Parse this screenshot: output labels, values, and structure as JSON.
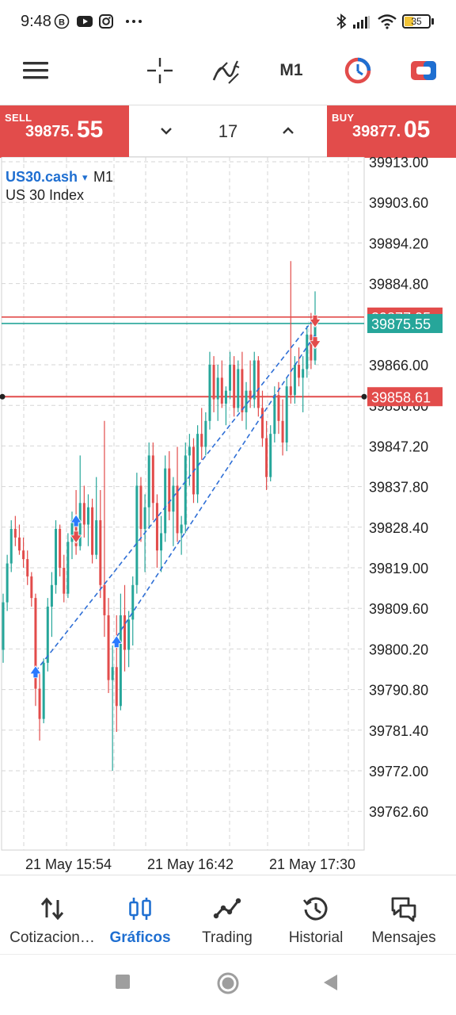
{
  "status_bar": {
    "time": "9:48",
    "battery": "35",
    "icons": [
      "b-circle-icon",
      "youtube-icon",
      "instagram-icon",
      "more-dots-icon",
      "bluetooth-icon",
      "signal-icon",
      "wifi-icon",
      "battery-icon"
    ]
  },
  "toolbar": {
    "timeframe": "M1",
    "icons": [
      "hamburger-menu-icon",
      "crosshair-icon",
      "indicators-icon",
      "clock-icon",
      "trade-panel-icon"
    ]
  },
  "trade_bar": {
    "sell_label": "SELL",
    "sell_price_small": "39875.",
    "sell_price_big": "55",
    "quantity": "17",
    "buy_label": "BUY",
    "buy_price_small": "39877.",
    "buy_price_big": "05"
  },
  "chart_info": {
    "symbol": "US30.cash",
    "dropdown_glyph": "▾",
    "timeframe": "M1",
    "description": "US 30 Index"
  },
  "chart_data": {
    "type": "candlestick",
    "y_ticks": [
      "39913.00",
      "39903.60",
      "39894.20",
      "39884.80",
      "39866.00",
      "39856.60",
      "39847.20",
      "39837.80",
      "39828.40",
      "39819.00",
      "39809.60",
      "39800.20",
      "39790.80",
      "39781.40",
      "39772.00",
      "39762.60"
    ],
    "x_ticks": [
      "21 May 15:54",
      "21 May 16:42",
      "21 May 17:30"
    ],
    "ylim": [
      39757.0,
      39915.0
    ],
    "price_labels": {
      "ask": "39877.05",
      "bid": "39875.55",
      "line": "39858.61"
    },
    "colors": {
      "up": "#26a69a",
      "down": "#e24c4b",
      "ask_line": "#e24c4b",
      "bid_line": "#26a69a",
      "buy_marker": "#2979ff",
      "sell_marker": "#e24c4b"
    },
    "grid": true,
    "ohlc": [
      {
        "o": 39800,
        "h": 39813,
        "l": 39797,
        "c": 39811
      },
      {
        "o": 39811,
        "h": 39822,
        "l": 39809,
        "c": 39820
      },
      {
        "o": 39820,
        "h": 39830,
        "l": 39818,
        "c": 39828
      },
      {
        "o": 39828,
        "h": 39831,
        "l": 39824,
        "c": 39826
      },
      {
        "o": 39826,
        "h": 39829,
        "l": 39822,
        "c": 39823
      },
      {
        "o": 39823,
        "h": 39826,
        "l": 39819,
        "c": 39821
      },
      {
        "o": 39821,
        "h": 39823,
        "l": 39815,
        "c": 39817
      },
      {
        "o": 39817,
        "h": 39818,
        "l": 39810,
        "c": 39812
      },
      {
        "o": 39812,
        "h": 39813,
        "l": 39787,
        "c": 39791
      },
      {
        "o": 39791,
        "h": 39795,
        "l": 39779,
        "c": 39784
      },
      {
        "o": 39784,
        "h": 39798,
        "l": 39783,
        "c": 39797
      },
      {
        "o": 39797,
        "h": 39812,
        "l": 39795,
        "c": 39810
      },
      {
        "o": 39810,
        "h": 39818,
        "l": 39803,
        "c": 39815
      },
      {
        "o": 39815,
        "h": 39830,
        "l": 39813,
        "c": 39828
      },
      {
        "o": 39828,
        "h": 39829,
        "l": 39817,
        "c": 39819
      },
      {
        "o": 39819,
        "h": 39822,
        "l": 39811,
        "c": 39813
      },
      {
        "o": 39813,
        "h": 39827,
        "l": 39812,
        "c": 39825
      },
      {
        "o": 39825,
        "h": 39832,
        "l": 39821,
        "c": 39830
      },
      {
        "o": 39830,
        "h": 39837,
        "l": 39822,
        "c": 39824
      },
      {
        "o": 39824,
        "h": 39845,
        "l": 39823,
        "c": 39834
      },
      {
        "o": 39834,
        "h": 39838,
        "l": 39826,
        "c": 39829
      },
      {
        "o": 39829,
        "h": 39836,
        "l": 39824,
        "c": 39833
      },
      {
        "o": 39833,
        "h": 39835,
        "l": 39820,
        "c": 39822
      },
      {
        "o": 39822,
        "h": 39840,
        "l": 39821,
        "c": 39830
      },
      {
        "o": 39830,
        "h": 39837,
        "l": 39812,
        "c": 39815
      },
      {
        "o": 39815,
        "h": 39853,
        "l": 39803,
        "c": 39808
      },
      {
        "o": 39808,
        "h": 39812,
        "l": 39790,
        "c": 39793
      },
      {
        "o": 39793,
        "h": 39801,
        "l": 39772,
        "c": 39796
      },
      {
        "o": 39796,
        "h": 39808,
        "l": 39781,
        "c": 39787
      },
      {
        "o": 39787,
        "h": 39813,
        "l": 39786,
        "c": 39808
      },
      {
        "o": 39808,
        "h": 39815,
        "l": 39795,
        "c": 39800
      },
      {
        "o": 39800,
        "h": 39809,
        "l": 39796,
        "c": 39807
      },
      {
        "o": 39807,
        "h": 39817,
        "l": 39801,
        "c": 39815
      },
      {
        "o": 39815,
        "h": 39841,
        "l": 39813,
        "c": 39838
      },
      {
        "o": 39838,
        "h": 39840,
        "l": 39825,
        "c": 39828
      },
      {
        "o": 39828,
        "h": 39836,
        "l": 39818,
        "c": 39833
      },
      {
        "o": 39833,
        "h": 39848,
        "l": 39828,
        "c": 39845
      },
      {
        "o": 39845,
        "h": 39848,
        "l": 39830,
        "c": 39834
      },
      {
        "o": 39834,
        "h": 39836,
        "l": 39819,
        "c": 39823
      },
      {
        "o": 39823,
        "h": 39831,
        "l": 39818,
        "c": 39827
      },
      {
        "o": 39827,
        "h": 39845,
        "l": 39825,
        "c": 39842
      },
      {
        "o": 39842,
        "h": 39846,
        "l": 39830,
        "c": 39832
      },
      {
        "o": 39832,
        "h": 39840,
        "l": 39824,
        "c": 39838
      },
      {
        "o": 39838,
        "h": 39847,
        "l": 39825,
        "c": 39827
      },
      {
        "o": 39827,
        "h": 39831,
        "l": 39822,
        "c": 39829
      },
      {
        "o": 39829,
        "h": 39848,
        "l": 39827,
        "c": 39845
      },
      {
        "o": 39845,
        "h": 39850,
        "l": 39838,
        "c": 39847
      },
      {
        "o": 39847,
        "h": 39849,
        "l": 39834,
        "c": 39836
      },
      {
        "o": 39836,
        "h": 39852,
        "l": 39834,
        "c": 39850
      },
      {
        "o": 39850,
        "h": 39856,
        "l": 39844,
        "c": 39847
      },
      {
        "o": 39847,
        "h": 39855,
        "l": 39845,
        "c": 39853
      },
      {
        "o": 39853,
        "h": 39869,
        "l": 39851,
        "c": 39866
      },
      {
        "o": 39866,
        "h": 39868,
        "l": 39855,
        "c": 39858
      },
      {
        "o": 39858,
        "h": 39866,
        "l": 39853,
        "c": 39863
      },
      {
        "o": 39863,
        "h": 39867,
        "l": 39856,
        "c": 39857
      },
      {
        "o": 39857,
        "h": 39861,
        "l": 39852,
        "c": 39860
      },
      {
        "o": 39860,
        "h": 39869,
        "l": 39858,
        "c": 39866
      },
      {
        "o": 39866,
        "h": 39868,
        "l": 39854,
        "c": 39856
      },
      {
        "o": 39856,
        "h": 39867,
        "l": 39855,
        "c": 39865
      },
      {
        "o": 39865,
        "h": 39869,
        "l": 39853,
        "c": 39855
      },
      {
        "o": 39855,
        "h": 39862,
        "l": 39851,
        "c": 39860
      },
      {
        "o": 39860,
        "h": 39867,
        "l": 39856,
        "c": 39858
      },
      {
        "o": 39858,
        "h": 39869,
        "l": 39856,
        "c": 39867
      },
      {
        "o": 39867,
        "h": 39868,
        "l": 39854,
        "c": 39856
      },
      {
        "o": 39856,
        "h": 39860,
        "l": 39847,
        "c": 39849
      },
      {
        "o": 39849,
        "h": 39853,
        "l": 39837,
        "c": 39840
      },
      {
        "o": 39840,
        "h": 39852,
        "l": 39839,
        "c": 39850
      },
      {
        "o": 39850,
        "h": 39861,
        "l": 39848,
        "c": 39859
      },
      {
        "o": 39859,
        "h": 39862,
        "l": 39850,
        "c": 39853
      },
      {
        "o": 39853,
        "h": 39858,
        "l": 39845,
        "c": 39848
      },
      {
        "o": 39848,
        "h": 39863,
        "l": 39846,
        "c": 39861
      },
      {
        "o": 39861,
        "h": 39890,
        "l": 39857,
        "c": 39859
      },
      {
        "o": 39859,
        "h": 39868,
        "l": 39857,
        "c": 39866
      },
      {
        "o": 39866,
        "h": 39870,
        "l": 39861,
        "c": 39863
      },
      {
        "o": 39863,
        "h": 39868,
        "l": 39855,
        "c": 39865
      },
      {
        "o": 39865,
        "h": 39875,
        "l": 39863,
        "c": 39873
      },
      {
        "o": 39873,
        "h": 39878,
        "l": 39865,
        "c": 39867
      },
      {
        "o": 39867,
        "h": 39883,
        "l": 39866,
        "c": 39875
      }
    ],
    "trend_lines": [
      {
        "x1": 8,
        "y1": 39795,
        "x2": 77,
        "y2": 39877
      },
      {
        "x1": 28,
        "y1": 39803,
        "x2": 77,
        "y2": 39873
      }
    ],
    "buy_markers": [
      {
        "i": 8,
        "p": 39795
      },
      {
        "i": 18,
        "p": 39830
      },
      {
        "i": 28,
        "p": 39802
      }
    ],
    "sell_markers": [
      {
        "i": 18,
        "p": 39826
      },
      {
        "i": 77,
        "p": 39876
      },
      {
        "i": 77,
        "p": 39871
      }
    ]
  },
  "bottom_nav": [
    {
      "label": "Cotizacion…",
      "icon": "quotes-arrows-icon",
      "active": false
    },
    {
      "label": "Gráficos",
      "icon": "candles-chart-icon",
      "active": true
    },
    {
      "label": "Trading",
      "icon": "trading-line-icon",
      "active": false
    },
    {
      "label": "Historial",
      "icon": "history-clock-icon",
      "active": false
    },
    {
      "label": "Mensajes",
      "icon": "messages-chat-icon",
      "active": false
    }
  ],
  "system_nav": [
    "recents-square-icon",
    "home-circle-icon",
    "back-triangle-icon"
  ]
}
